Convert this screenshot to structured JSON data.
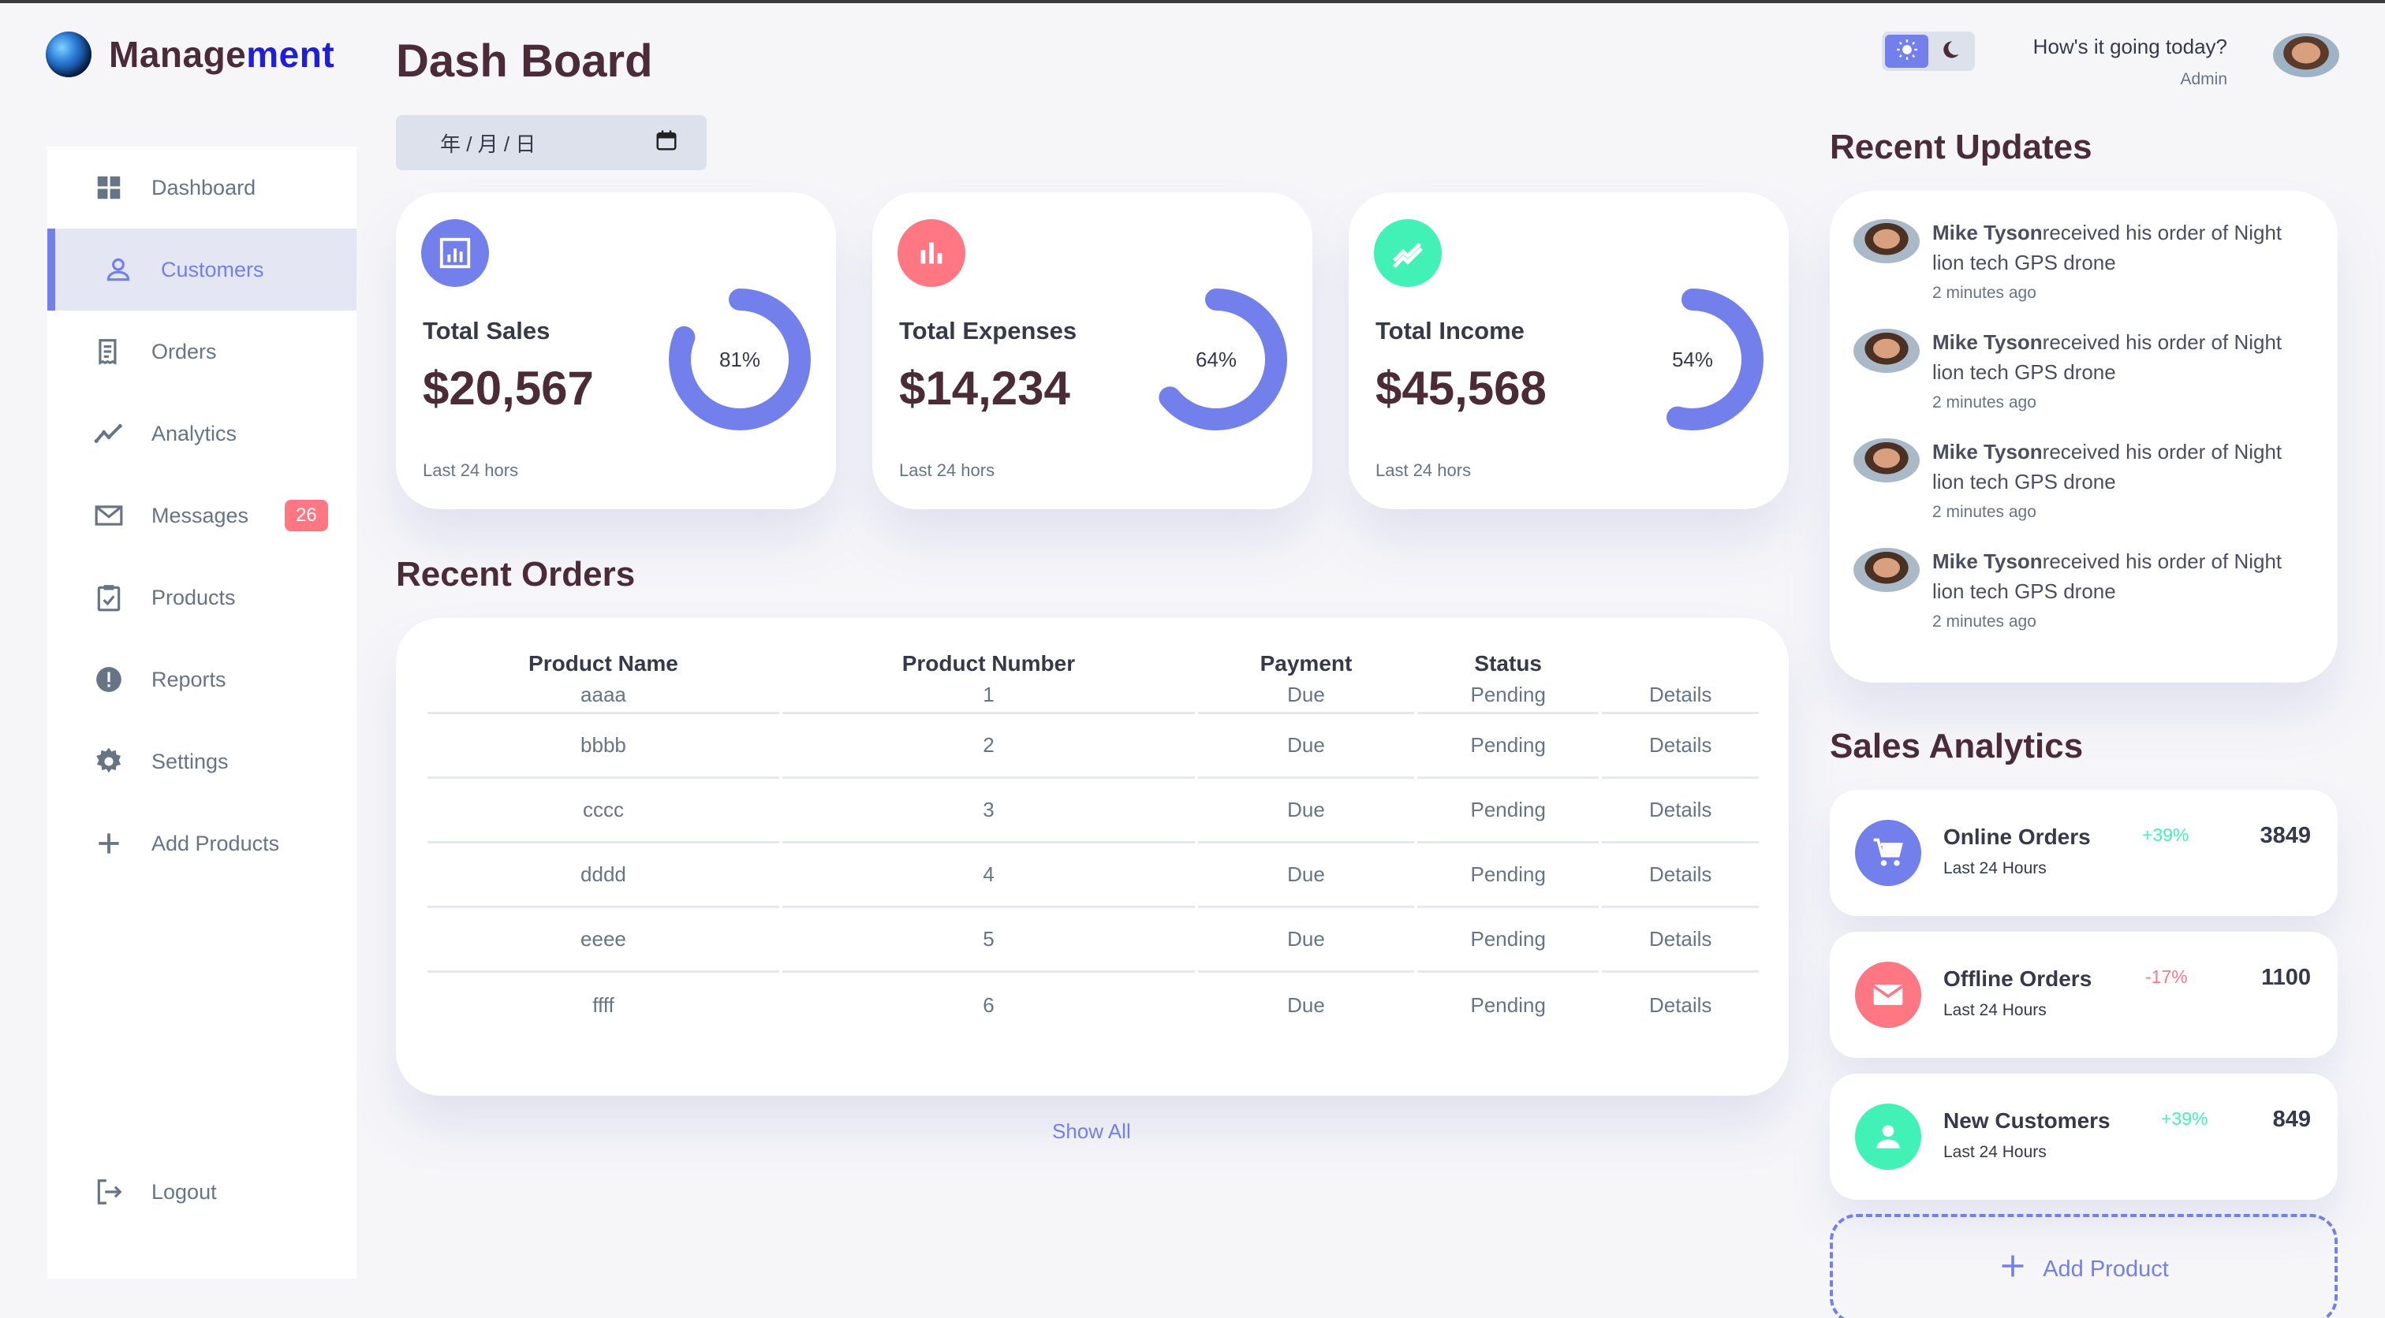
{
  "brand": {
    "name_part1": "Manage",
    "name_part2": "ment"
  },
  "sidebar": {
    "items": [
      {
        "label": "Dashboard"
      },
      {
        "label": "Customers"
      },
      {
        "label": "Orders"
      },
      {
        "label": "Analytics"
      },
      {
        "label": "Messages",
        "badge": "26"
      },
      {
        "label": "Products"
      },
      {
        "label": "Reports"
      },
      {
        "label": "Settings"
      },
      {
        "label": "Add Products"
      }
    ],
    "logout": "Logout",
    "active_item": "Customers"
  },
  "header": {
    "title": "Dash Board",
    "date_placeholder": "年 / 月 / 日",
    "greeting": "How's it going today?",
    "role": "Admin"
  },
  "cards": [
    {
      "label": "Total Sales",
      "amount": "$20,567",
      "percent_text": "81%",
      "percent": 81,
      "footer": "Last 24 hors",
      "color": "#7380ec"
    },
    {
      "label": "Total Expenses",
      "amount": "$14,234",
      "percent_text": "64%",
      "percent": 64,
      "footer": "Last 24 hors",
      "color": "#ff7782"
    },
    {
      "label": "Total Income",
      "amount": "$45,568",
      "percent_text": "54%",
      "percent": 54,
      "footer": "Last 24 hors",
      "color": "#41f1b6"
    }
  ],
  "recent_orders": {
    "title": "Recent Orders",
    "headers": [
      "Product Name",
      "Product Number",
      "Payment",
      "Status"
    ],
    "rows": [
      [
        "aaaa",
        "1",
        "Due",
        "Pending",
        "Details"
      ],
      [
        "bbbb",
        "2",
        "Due",
        "Pending",
        "Details"
      ],
      [
        "cccc",
        "3",
        "Due",
        "Pending",
        "Details"
      ],
      [
        "dddd",
        "4",
        "Due",
        "Pending",
        "Details"
      ],
      [
        "eeee",
        "5",
        "Due",
        "Pending",
        "Details"
      ],
      [
        "ffff",
        "6",
        "Due",
        "Pending",
        "Details"
      ]
    ],
    "show_all": "Show All"
  },
  "recent_updates": {
    "title": "Recent Updates",
    "items": [
      {
        "name": "Mike Tyson",
        "text": "received his order of Night lion tech GPS drone",
        "time": "2 minutes ago"
      },
      {
        "name": "Mike Tyson",
        "text": "received his order of Night lion tech GPS drone",
        "time": "2 minutes ago"
      },
      {
        "name": "Mike Tyson",
        "text": "received his order of Night lion tech GPS drone",
        "time": "2 minutes ago"
      },
      {
        "name": "Mike Tyson",
        "text": "received his order of Night lion tech GPS drone",
        "time": "2 minutes ago"
      }
    ]
  },
  "sales_analytics": {
    "title": "Sales Analytics",
    "items": [
      {
        "name": "Online Orders",
        "sub": "Last 24 Hours",
        "change": "+39%",
        "value": "3849",
        "icon": "cart-icon",
        "color": "#7380ec",
        "change_color": "#41f1b6"
      },
      {
        "name": "Offline Orders",
        "sub": "Last 24 Hours",
        "change": "-17%",
        "value": "1100",
        "icon": "mail-icon",
        "color": "#ff7782",
        "change_color": "#ff7782"
      },
      {
        "name": "New Customers",
        "sub": "Last 24 Hours",
        "change": "+39%",
        "value": "849",
        "icon": "person-icon",
        "color": "#41f1b6",
        "change_color": "#41f1b6"
      }
    ],
    "add_product": "Add Product"
  },
  "colors": {
    "primary": "#7380ec",
    "danger": "#ff7782",
    "success": "#41f1b6",
    "dark": "#363949",
    "title": "#4a2b36"
  }
}
